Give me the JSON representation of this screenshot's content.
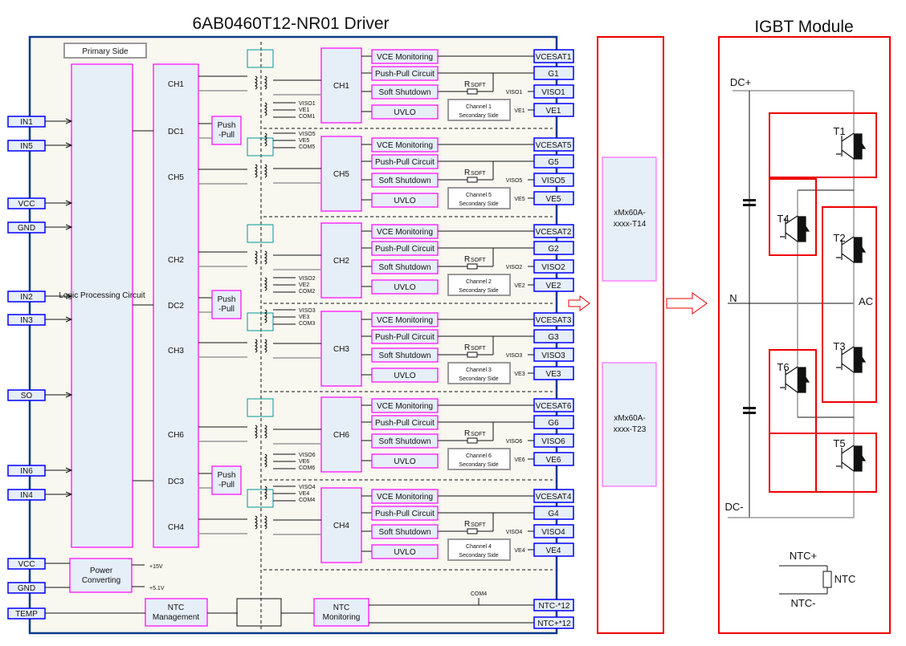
{
  "titles": {
    "driver": "6AB0460T12-NR01 Driver",
    "module": "IGBT Module"
  },
  "primary_side": "Primary Side",
  "logic": "Logic Processing Circuit",
  "primary_channels": [
    "CH1",
    "DC1",
    "CH5",
    "CH2",
    "DC2",
    "CH3",
    "CH6",
    "DC3",
    "CH4"
  ],
  "push_pull": "Push -Pull",
  "left_pins": [
    "IN1",
    "IN5",
    "VCC",
    "GND",
    "IN2",
    "IN3",
    "SO",
    "IN6",
    "IN4",
    "VCC",
    "GND",
    "TEMP"
  ],
  "iso_labels": [
    [
      "VISO1",
      "VE1",
      "COM1"
    ],
    [
      "VISO5",
      "VE5",
      "COM5"
    ],
    [
      "VISO2",
      "VE2",
      "COM2"
    ],
    [
      "VISO3",
      "VE3",
      "COM3"
    ],
    [
      "VISO6",
      "VE6",
      "COM6"
    ],
    [
      "VISO4",
      "VE4",
      "COM4"
    ]
  ],
  "groups": [
    {
      "ch": "CH1",
      "n": "1",
      "pins": [
        "VCESAT1",
        "G1",
        "VISO1",
        "VE1"
      ],
      "side": "Channel 1 Secondary Side"
    },
    {
      "ch": "CH5",
      "n": "5",
      "pins": [
        "VCESAT5",
        "G5",
        "VISO5",
        "VE5"
      ],
      "side": "Channel 5 Secondary Side"
    },
    {
      "ch": "CH2",
      "n": "2",
      "pins": [
        "VCESAT2",
        "G2",
        "VISO2",
        "VE2"
      ],
      "side": "Channel 2 Secondary Side"
    },
    {
      "ch": "CH3",
      "n": "3",
      "pins": [
        "VCESAT3",
        "G3",
        "VISO3",
        "VE3"
      ],
      "side": "Channel 3 Secondary Side"
    },
    {
      "ch": "CH6",
      "n": "6",
      "pins": [
        "VCESAT6",
        "G6",
        "VISO6",
        "VE6"
      ],
      "side": "Channel 6 Secondary Side"
    },
    {
      "ch": "CH4",
      "n": "4",
      "pins": [
        "VCESAT4",
        "G4",
        "VISO4",
        "VE4"
      ],
      "side": "Channel 4 Secondary Side"
    }
  ],
  "blocks": [
    "VCE Monitoring",
    "Push-Pull Circuit",
    "Soft Shutdown",
    "UVLO"
  ],
  "rsoft": {
    "r": "R",
    "sub": "SOFT"
  },
  "power": {
    "label": "Power Converting",
    "v1": "+15V",
    "v2": "+5.1V"
  },
  "ntc_mgmt": "NTC Management",
  "ntc_mon": "NTC Monitoring",
  "com4": "COM4",
  "ntc_pins": [
    "NTC-*12",
    "NTC+*12"
  ],
  "adapters": [
    "xMx60A-xxxx-T14",
    "xMx60A-xxxx-T23"
  ],
  "igbt": {
    "dcp": "DC+",
    "dcm": "DC-",
    "n": "N",
    "ac": "AC",
    "t": [
      "T1",
      "T2",
      "T3",
      "T4",
      "T5",
      "T6"
    ],
    "ntcp": "NTC+",
    "ntcm": "NTC-",
    "ntc": "NTC"
  },
  "colors": {
    "block_border": "#ff00ff",
    "pin_border": "#0000ff",
    "module_border": "#ee0000",
    "fill": "#e6eef8"
  }
}
